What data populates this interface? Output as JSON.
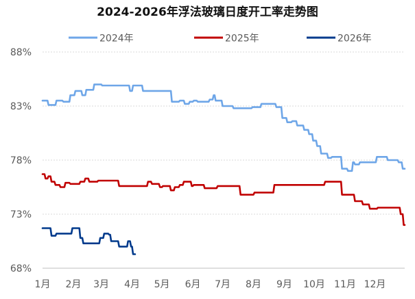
{
  "chart_data": {
    "type": "line",
    "title": "2024-2026年浮法玻璃日度开工率走势图",
    "xlabel": "",
    "ylabel": "",
    "x_unit": "day_of_year",
    "x_range": [
      1,
      365
    ],
    "ylim": [
      68,
      90
    ],
    "y_ticks": [
      68,
      73,
      78,
      83,
      88
    ],
    "y_tick_labels": [
      "68%",
      "73%",
      "78%",
      "83%",
      "88%"
    ],
    "month_labels": [
      "1月",
      "2月",
      "3月",
      "4月",
      "5月",
      "6月",
      "7月",
      "8月",
      "9月",
      "10月",
      "11月",
      "12月"
    ],
    "grid": "horizontal-dashed",
    "legend_position": "top",
    "series": [
      {
        "name": "2024年",
        "color": "#6ea6e8",
        "x": [
          1,
          6,
          7,
          14,
          15,
          21,
          22,
          28,
          29,
          33,
          34,
          40,
          41,
          44,
          45,
          52,
          53,
          60,
          61,
          69,
          70,
          79,
          80,
          84,
          85,
          88,
          89,
          91,
          92,
          101,
          102,
          121,
          122,
          130,
          131,
          138,
          139,
          143,
          144,
          148,
          149,
          152,
          153,
          156,
          157,
          168,
          169,
          172,
          173,
          174,
          175,
          181,
          182,
          192,
          193,
          211,
          212,
          220,
          221,
          230,
          231,
          235,
          236,
          241,
          242,
          246,
          247,
          251,
          252,
          256,
          257,
          260,
          261,
          263,
          264,
          268,
          269,
          272,
          273,
          276,
          277,
          280,
          281,
          287,
          288,
          291,
          292,
          301,
          302,
          307,
          308,
          312,
          313,
          314,
          315,
          319,
          320,
          336,
          337,
          347,
          348,
          358,
          359,
          362,
          363,
          365
        ],
        "values": [
          83.5,
          83.5,
          83.1,
          83.1,
          83.5,
          83.5,
          83.4,
          83.4,
          84.0,
          84.0,
          84.4,
          84.4,
          84.0,
          84.0,
          84.5,
          84.5,
          85.0,
          85.0,
          84.9,
          84.9,
          84.9,
          84.9,
          84.9,
          84.9,
          84.9,
          84.9,
          84.4,
          84.4,
          84.9,
          84.9,
          84.4,
          84.4,
          84.4,
          84.4,
          83.4,
          83.4,
          83.5,
          83.5,
          83.2,
          83.2,
          83.4,
          83.4,
          83.5,
          83.5,
          83.4,
          83.4,
          83.6,
          83.6,
          84.0,
          84.0,
          83.5,
          83.5,
          83.0,
          83.0,
          82.8,
          82.8,
          82.9,
          82.9,
          83.2,
          83.2,
          83.2,
          83.2,
          82.9,
          82.9,
          81.9,
          81.9,
          81.5,
          81.5,
          81.6,
          81.6,
          81.2,
          81.2,
          81.2,
          81.2,
          80.8,
          80.8,
          80.4,
          80.4,
          79.8,
          79.8,
          79.3,
          79.3,
          78.6,
          78.6,
          78.2,
          78.2,
          78.3,
          78.3,
          77.2,
          77.2,
          77.0,
          77.0,
          77.8,
          77.8,
          77.6,
          77.6,
          77.8,
          77.8,
          78.3,
          78.3,
          78.0,
          78.0,
          77.8,
          77.8,
          77.2,
          77.2
        ]
      },
      {
        "name": "2025年",
        "color": "#c00000",
        "x": [
          1,
          3,
          4,
          6,
          7,
          9,
          10,
          13,
          14,
          18,
          19,
          23,
          24,
          28,
          29,
          38,
          39,
          43,
          44,
          47,
          48,
          56,
          57,
          77,
          78,
          91,
          92,
          106,
          107,
          110,
          111,
          118,
          119,
          121,
          122,
          129,
          130,
          133,
          134,
          138,
          139,
          142,
          143,
          150,
          151,
          152,
          153,
          163,
          164,
          176,
          177,
          199,
          200,
          213,
          214,
          233,
          234,
          284,
          285,
          301,
          302,
          314,
          315,
          322,
          323,
          329,
          330,
          337,
          338,
          352,
          353,
          360,
          361,
          363,
          364,
          365
        ],
        "values": [
          76.7,
          76.7,
          76.3,
          76.3,
          76.5,
          76.5,
          76.0,
          76.0,
          75.7,
          75.7,
          75.5,
          75.5,
          75.9,
          75.9,
          75.8,
          75.8,
          76.0,
          76.0,
          76.3,
          76.3,
          76.0,
          76.0,
          76.1,
          76.1,
          75.6,
          75.6,
          75.6,
          75.6,
          76.0,
          76.0,
          75.8,
          75.8,
          75.5,
          75.5,
          75.6,
          75.6,
          75.2,
          75.2,
          75.5,
          75.5,
          75.7,
          75.7,
          76.0,
          76.0,
          75.6,
          75.6,
          75.7,
          75.7,
          75.4,
          75.4,
          75.6,
          75.6,
          74.8,
          74.8,
          75.0,
          75.0,
          75.7,
          75.7,
          76.0,
          76.0,
          74.8,
          74.8,
          74.2,
          74.2,
          73.9,
          73.9,
          73.5,
          73.5,
          73.6,
          73.6,
          73.6,
          73.6,
          73.0,
          73.0,
          72.0,
          72.0
        ]
      },
      {
        "name": "2026年",
        "color": "#003a8c",
        "x": [
          1,
          9,
          10,
          14,
          15,
          30,
          31,
          38,
          39,
          41,
          42,
          58,
          59,
          62,
          63,
          67,
          68,
          69,
          70,
          77,
          78,
          86,
          87,
          89,
          90,
          91,
          92,
          94
        ],
        "values": [
          71.7,
          71.7,
          71.0,
          71.0,
          71.2,
          71.2,
          71.7,
          71.7,
          70.8,
          70.8,
          70.3,
          70.3,
          70.8,
          70.8,
          71.2,
          71.2,
          71.1,
          71.1,
          70.5,
          70.5,
          70.0,
          70.0,
          70.5,
          70.5,
          70.0,
          70.0,
          69.3,
          69.3
        ]
      }
    ]
  }
}
